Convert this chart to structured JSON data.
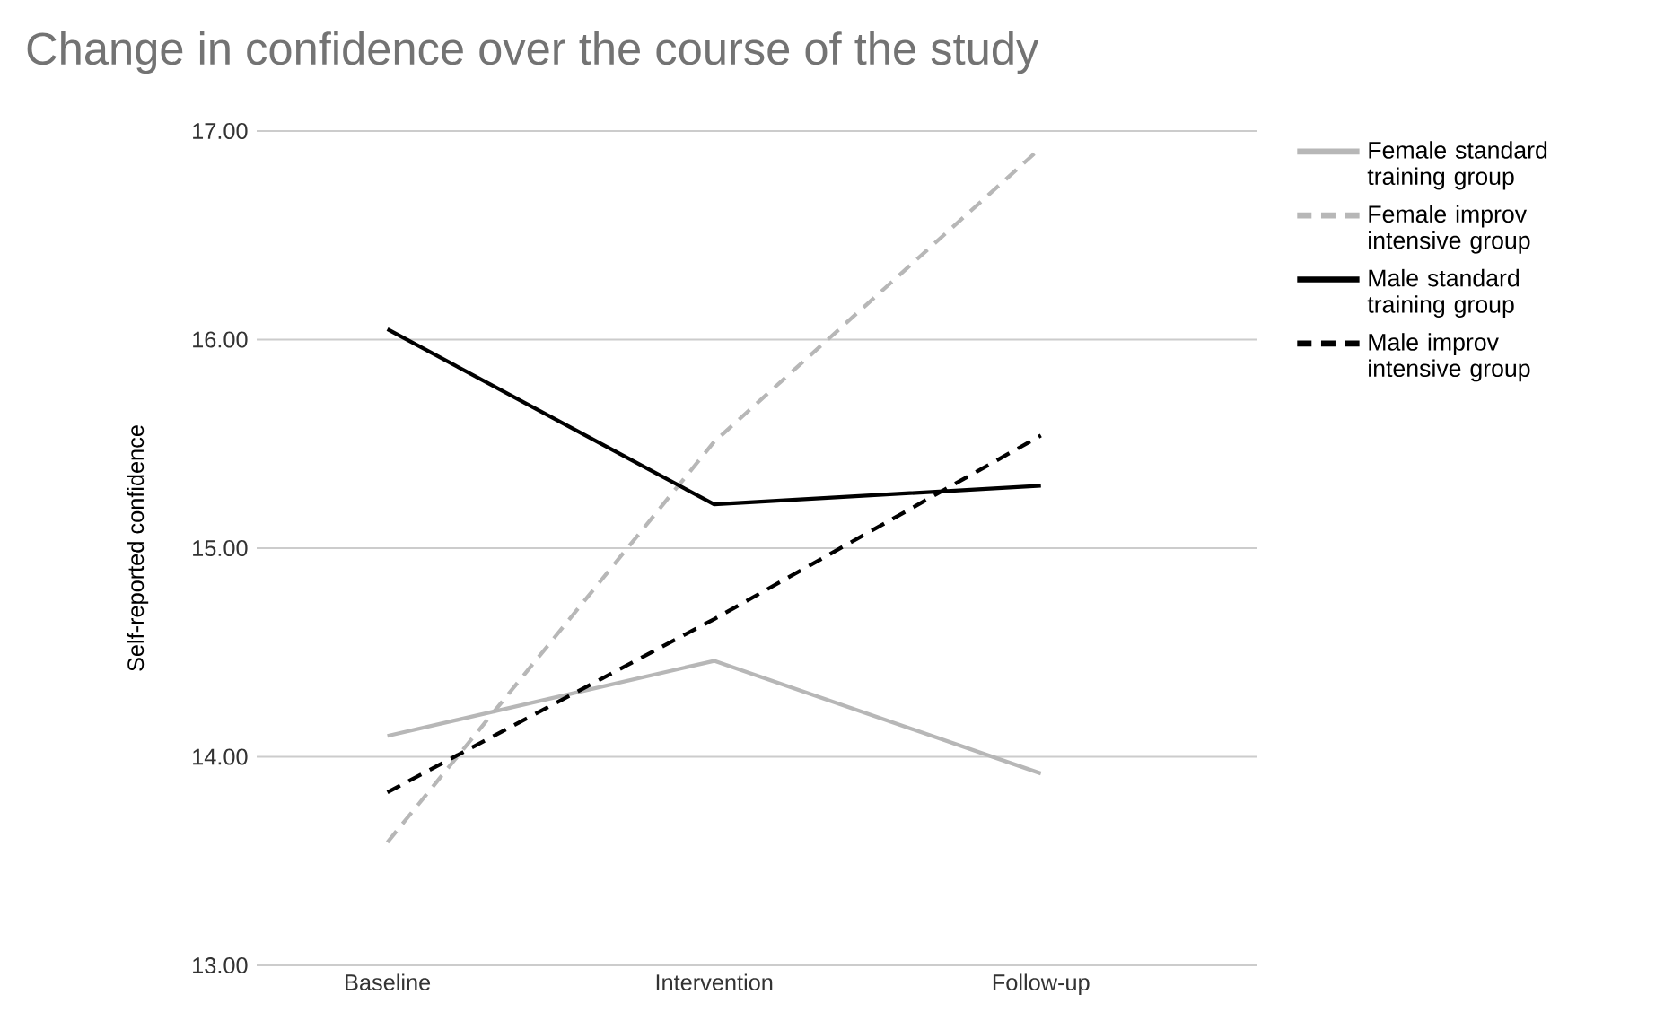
{
  "chart_data": {
    "type": "line",
    "title": "Change in confidence over the course of the study",
    "ylabel": "Self-reported confidence",
    "categories": [
      "Baseline",
      "Intervention",
      "Follow-up"
    ],
    "series": [
      {
        "name": "Female standard training group",
        "color": "#b7b7b7",
        "line_style": "solid",
        "values": [
          14.1,
          14.46,
          13.92
        ]
      },
      {
        "name": "Female improv intensive group",
        "color": "#b7b7b7",
        "line_style": "dashed",
        "values": [
          13.59,
          15.51,
          16.92
        ]
      },
      {
        "name": "Male standard training group",
        "color": "#000000",
        "line_style": "solid",
        "values": [
          16.05,
          15.21,
          15.3
        ]
      },
      {
        "name": "Male improv intensive group",
        "color": "#000000",
        "line_style": "dashed",
        "values": [
          13.83,
          14.66,
          15.54
        ]
      }
    ],
    "ylim": [
      13,
      17
    ],
    "yticks": [
      {
        "value": 13,
        "label": "13.00"
      },
      {
        "value": 14,
        "label": "14.00"
      },
      {
        "value": 15,
        "label": "15.00"
      },
      {
        "value": 16,
        "label": "16.00"
      },
      {
        "value": 17,
        "label": "17.00"
      }
    ],
    "grid": "y",
    "legend": "right"
  }
}
